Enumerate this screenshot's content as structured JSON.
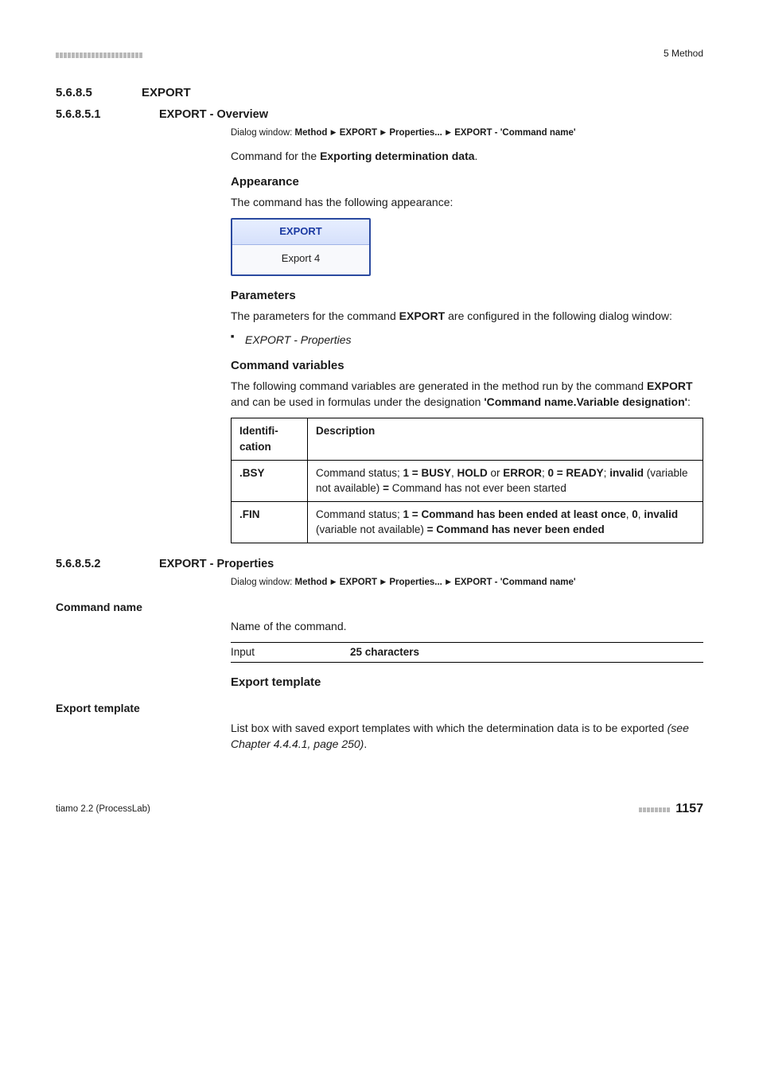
{
  "header": {
    "chapter_ref": "5 Method"
  },
  "sec_export": {
    "num": "5.6.8.5",
    "title": "EXPORT"
  },
  "sub_overview": {
    "num": "5.6.8.5.1",
    "title": "EXPORT - Overview"
  },
  "dialog1": {
    "prefix": "Dialog window: ",
    "p1": "Method",
    "p2": "EXPORT",
    "p3": "Properties...",
    "p4": "EXPORT - 'Command name'"
  },
  "overview_intro_pre": "Command for the ",
  "overview_intro_bold": "Exporting determination data",
  "overview_intro_post": ".",
  "h_appearance": "Appearance",
  "appearance_text": "The command has the following appearance:",
  "cmd_box": {
    "header": "EXPORT",
    "body": "Export 4"
  },
  "h_parameters": "Parameters",
  "parameters_text_pre": "The parameters for the command ",
  "parameters_text_bold": "EXPORT",
  "parameters_text_post": " are configured in the following dialog window:",
  "param_bullet": "EXPORT - Properties",
  "h_cmdvars": "Command variables",
  "cmdvars_text_pre": "The following command variables are generated in the method run by the command ",
  "cmdvars_text_bold": "EXPORT",
  "cmdvars_text_post": " and can be used in formulas under the designation ",
  "cmdvars_text_bold2": "'Command name.Variable designation'",
  "cmdvars_text_end": ":",
  "table": {
    "col1": "Identification",
    "col2": "Description",
    "rows": [
      {
        "id": ".BSY",
        "desc_parts": [
          {
            "t": "Command status; ",
            "b": false
          },
          {
            "t": "1 = BUSY",
            "b": true
          },
          {
            "t": ", ",
            "b": false
          },
          {
            "t": "HOLD",
            "b": true
          },
          {
            "t": " or ",
            "b": false
          },
          {
            "t": "ERROR",
            "b": true
          },
          {
            "t": "; ",
            "b": false
          },
          {
            "t": "0 = READY",
            "b": true
          },
          {
            "t": "; ",
            "b": false
          },
          {
            "t": "invalid",
            "b": true
          },
          {
            "t": " (variable not available) ",
            "b": false
          },
          {
            "t": "=",
            "b": true
          },
          {
            "t": " Command has not ever been started",
            "b": false
          }
        ]
      },
      {
        "id": ".FIN",
        "desc_parts": [
          {
            "t": "Command status; ",
            "b": false
          },
          {
            "t": "1 = Command has been ended at least once",
            "b": true
          },
          {
            "t": ", ",
            "b": false
          },
          {
            "t": "0",
            "b": true
          },
          {
            "t": ", ",
            "b": false
          },
          {
            "t": "invalid",
            "b": true
          },
          {
            "t": " (variable not available) ",
            "b": false
          },
          {
            "t": "= Command has never been ended",
            "b": true
          }
        ]
      }
    ]
  },
  "sub_props": {
    "num": "5.6.8.5.2",
    "title": "EXPORT - Properties"
  },
  "dialog2": {
    "prefix": "Dialog window: ",
    "p1": "Method",
    "p2": "EXPORT",
    "p3": "Properties...",
    "p4": "EXPORT - 'Command name'"
  },
  "cmd_name_label": "Command name",
  "cmd_name_text": "Name of the command.",
  "input_row": {
    "label": "Input",
    "value": "25 characters"
  },
  "h_export_tpl": "Export template",
  "export_tpl_label": "Export template",
  "export_tpl_text_pre": "List box with saved export templates with which the determination data is to be exported ",
  "export_tpl_text_italic": "(see Chapter 4.4.4.1, page 250)",
  "export_tpl_text_post": ".",
  "footer": {
    "left": "tiamo 2.2 (ProcessLab)",
    "page": "1157"
  },
  "colors": {
    "accent_blue": "#2b4aa0",
    "header_text_blue": "#1b3aa2",
    "dash_gray": "#b9b9b9"
  }
}
